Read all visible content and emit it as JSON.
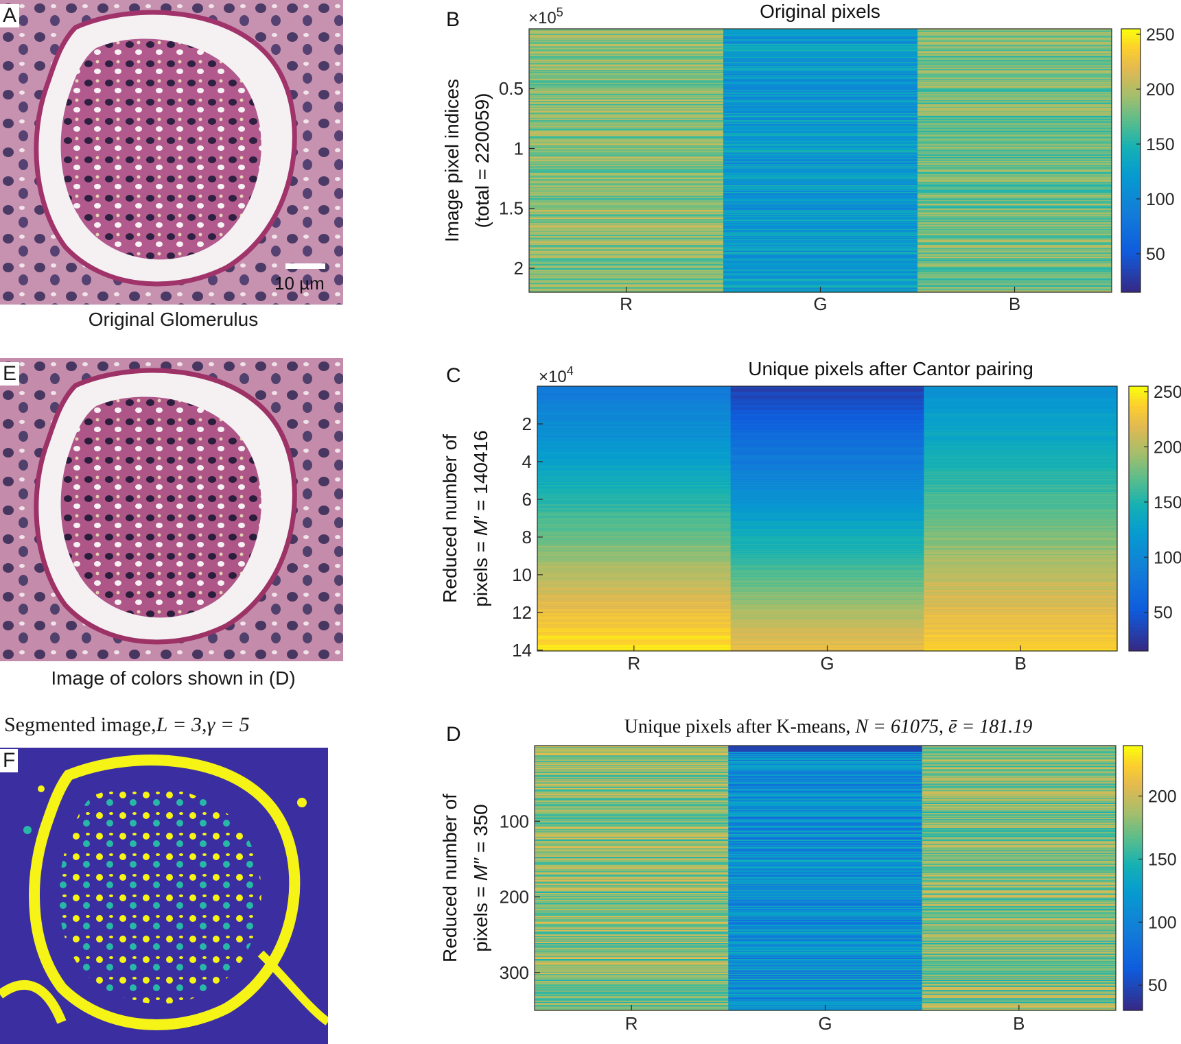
{
  "panels": {
    "A": {
      "letter": "A",
      "caption": "Original Glomerulus",
      "scalebar_label": "10 µm"
    },
    "E": {
      "letter": "E",
      "caption": "Image of colors shown in (D)"
    },
    "F": {
      "letter": "F",
      "caption_prefix": "Segmented image,",
      "caption_L": "L = 3",
      "caption_sep": ",",
      "caption_gamma": "γ = 5"
    }
  },
  "colors": {
    "stain_bg": "#c98fb0",
    "lumen": "#f4f0f2",
    "nucleus": "#3a2a55",
    "capsule": "#a23a6e",
    "seg_bg": "#3a2ea1",
    "seg_yellow": "#f6f417",
    "seg_teal": "#27b8a6"
  },
  "chart_data": [
    {
      "id": "B",
      "type": "heatmap",
      "letter": "B",
      "title": "Original pixels",
      "categories": [
        "R",
        "G",
        "B"
      ],
      "ylabel_lines": [
        "Image pixel indices",
        "(total = 220059)"
      ],
      "exponent_base": "×10",
      "exponent_power": "5",
      "yticks": [
        0.5,
        1,
        1.5,
        2
      ],
      "yticklabels": [
        "0.5",
        "1",
        "1.5",
        "2"
      ],
      "ylim": [
        0,
        2.20059
      ],
      "colorbar_ticks": [
        50,
        100,
        150,
        200,
        250
      ],
      "colorbar_labels": [
        "50",
        "100",
        "150",
        "200",
        "250"
      ],
      "clim": [
        15,
        255
      ],
      "column_means": [
        185,
        120,
        180
      ],
      "pattern": "noisy"
    },
    {
      "id": "C",
      "type": "heatmap",
      "letter": "C",
      "title": "Unique pixels after Cantor pairing",
      "categories": [
        "R",
        "G",
        "B"
      ],
      "ylabel_parts": [
        "Reduced number of",
        "pixels = ",
        "M′",
        " = 140416"
      ],
      "exponent_base": "×10",
      "exponent_power": "4",
      "yticks": [
        2,
        4,
        6,
        8,
        10,
        12,
        14
      ],
      "yticklabels": [
        "2",
        "4",
        "6",
        "8",
        "10",
        "12",
        "14"
      ],
      "ylim": [
        0,
        14.0416
      ],
      "colorbar_ticks": [
        50,
        100,
        150,
        200,
        250
      ],
      "colorbar_labels": [
        "50",
        "100",
        "150",
        "200",
        "250"
      ],
      "clim": [
        15,
        255
      ],
      "column_start": [
        80,
        30,
        110
      ],
      "column_end": [
        250,
        225,
        240
      ],
      "pattern": "gradient"
    },
    {
      "id": "D",
      "type": "heatmap",
      "letter": "D",
      "title_prefix": "Unique pixels after K-means, ",
      "title_N": "N = 61075",
      "title_sep": ", ",
      "title_e": "ē = 181.19",
      "categories": [
        "R",
        "G",
        "B"
      ],
      "ylabel_parts": [
        "Reduced number of",
        "pixels = ",
        "M″",
        " = 350"
      ],
      "yticks": [
        100,
        200,
        300
      ],
      "yticklabels": [
        "100",
        "200",
        "300"
      ],
      "ylim": [
        0,
        350
      ],
      "colorbar_ticks": [
        50,
        100,
        150,
        200
      ],
      "colorbar_labels": [
        "50",
        "100",
        "150",
        "200"
      ],
      "clim": [
        30,
        240
      ],
      "column_means": [
        180,
        110,
        175
      ],
      "pattern": "coarse"
    }
  ]
}
